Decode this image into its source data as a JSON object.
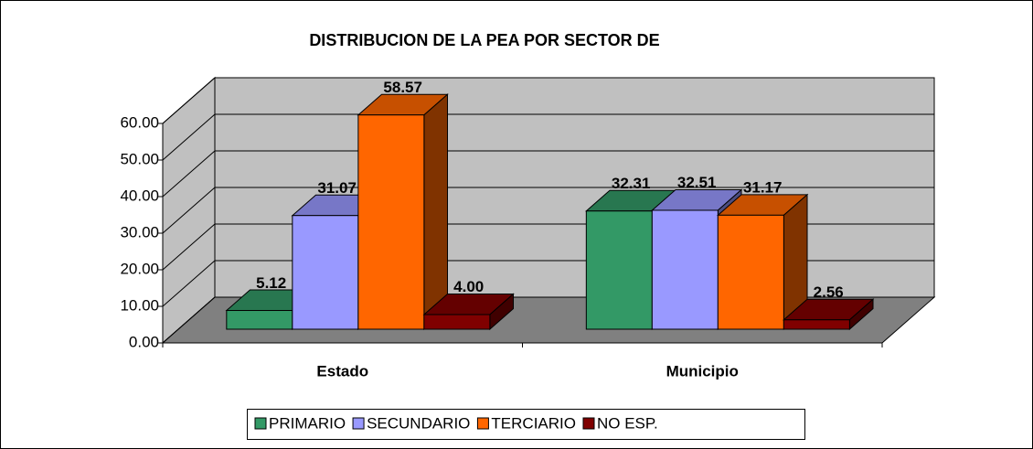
{
  "chart_data": {
    "type": "bar3d",
    "title": "DISTRIBUCION DE LA PEA POR SECTOR DE",
    "categories": [
      "Estado",
      "Municipio"
    ],
    "series": [
      {
        "name": "PRIMARIO",
        "color": "#339966",
        "values": [
          5.12,
          32.31
        ],
        "value_labels": [
          "5.12",
          "32.31"
        ]
      },
      {
        "name": "SECUNDARIO",
        "color": "#9999ff",
        "values": [
          31.07,
          32.51
        ],
        "value_labels": [
          "31.07",
          "32.51"
        ]
      },
      {
        "name": "TERCIARIO",
        "color": "#ff6600",
        "values": [
          58.57,
          31.17
        ],
        "value_labels": [
          "58.57",
          "31.17"
        ]
      },
      {
        "name": "NO ESP.",
        "color": "#800000",
        "values": [
          4.0,
          2.56
        ],
        "value_labels": [
          "4.00",
          "2.56"
        ]
      }
    ],
    "ylim": [
      0,
      60
    ],
    "yticks": [
      {
        "value": 0,
        "label": "0.00"
      },
      {
        "value": 10,
        "label": "10.00"
      },
      {
        "value": 20,
        "label": "20.00"
      },
      {
        "value": 30,
        "label": "30.00"
      },
      {
        "value": 40,
        "label": "40.00"
      },
      {
        "value": 50,
        "label": "50.00"
      },
      {
        "value": 60,
        "label": "60.00"
      }
    ],
    "grid": true,
    "legend": "bottom"
  }
}
